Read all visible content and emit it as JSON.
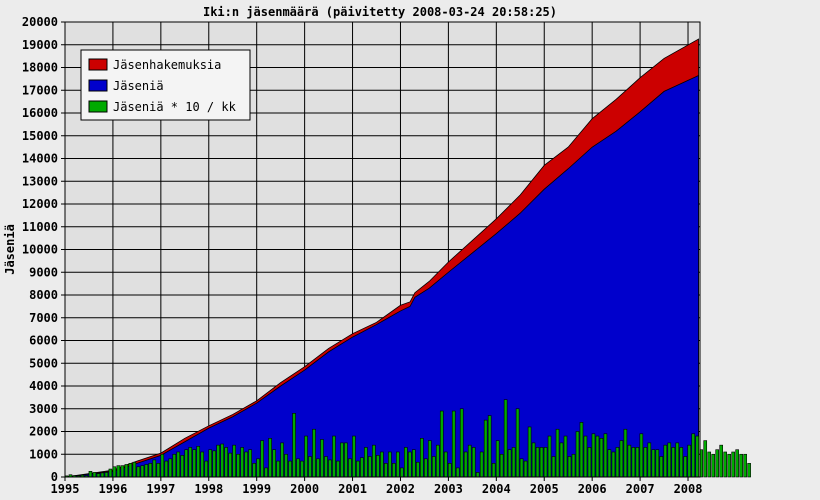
{
  "chart_data": {
    "type": "area",
    "title": "Iki:n jäsenmäärä (päivitetty 2008-03-24 20:58:25)",
    "xlabel": "",
    "ylabel": "Jäseniä",
    "ylim": [
      0,
      20000
    ],
    "xlim": [
      1995.0,
      2008.25
    ],
    "grid": true,
    "legend_position": "top-left",
    "y_ticks": [
      0,
      1000,
      2000,
      3000,
      4000,
      5000,
      6000,
      7000,
      8000,
      9000,
      10000,
      11000,
      12000,
      13000,
      14000,
      15000,
      16000,
      17000,
      18000,
      19000,
      20000
    ],
    "x_ticks": [
      1995,
      1996,
      1997,
      1998,
      1999,
      2000,
      2001,
      2002,
      2003,
      2004,
      2005,
      2006,
      2007,
      2008
    ],
    "series": [
      {
        "name": "Jäsenhakemuksia",
        "kind": "area",
        "color": "#cc0000",
        "points": [
          [
            1995.0,
            0
          ],
          [
            1996.0,
            300
          ],
          [
            1996.5,
            700
          ],
          [
            1997.0,
            1050
          ],
          [
            1997.5,
            1700
          ],
          [
            1998.0,
            2250
          ],
          [
            1998.5,
            2750
          ],
          [
            1999.0,
            3350
          ],
          [
            1999.5,
            4150
          ],
          [
            2000.0,
            4850
          ],
          [
            2000.5,
            5650
          ],
          [
            2001.0,
            6300
          ],
          [
            2001.5,
            6800
          ],
          [
            2002.0,
            7550
          ],
          [
            2002.2,
            7700
          ],
          [
            2002.3,
            8100
          ],
          [
            2002.6,
            8600
          ],
          [
            2003.0,
            9450
          ],
          [
            2003.5,
            10400
          ],
          [
            2004.0,
            11350
          ],
          [
            2004.5,
            12400
          ],
          [
            2005.0,
            13700
          ],
          [
            2005.5,
            14500
          ],
          [
            2006.0,
            15750
          ],
          [
            2006.5,
            16600
          ],
          [
            2007.0,
            17550
          ],
          [
            2007.5,
            18400
          ],
          [
            2008.22,
            19250
          ]
        ]
      },
      {
        "name": "Jäseniä",
        "kind": "area",
        "color": "#0000cc",
        "points": [
          [
            1995.0,
            0
          ],
          [
            1996.0,
            250
          ],
          [
            1996.5,
            600
          ],
          [
            1997.0,
            950
          ],
          [
            1997.5,
            1550
          ],
          [
            1998.0,
            2150
          ],
          [
            1998.5,
            2650
          ],
          [
            1999.0,
            3250
          ],
          [
            1999.5,
            4000
          ],
          [
            2000.0,
            4700
          ],
          [
            2000.5,
            5500
          ],
          [
            2001.0,
            6150
          ],
          [
            2001.5,
            6700
          ],
          [
            2002.0,
            7300
          ],
          [
            2002.2,
            7500
          ],
          [
            2002.3,
            7900
          ],
          [
            2002.6,
            8300
          ],
          [
            2003.0,
            9000
          ],
          [
            2003.5,
            9850
          ],
          [
            2004.0,
            10700
          ],
          [
            2004.5,
            11600
          ],
          [
            2005.0,
            12650
          ],
          [
            2005.5,
            13550
          ],
          [
            2006.0,
            14500
          ],
          [
            2006.5,
            15200
          ],
          [
            2007.0,
            16050
          ],
          [
            2007.5,
            16950
          ],
          [
            2008.22,
            17650
          ]
        ]
      },
      {
        "name": "Jäseniä * 10 / kk",
        "kind": "bar",
        "color": "#00aa00",
        "x_start": 1995.0,
        "step": 0.0833,
        "values": [
          50,
          100,
          60,
          50,
          80,
          60,
          250,
          200,
          150,
          180,
          200,
          350,
          450,
          500,
          500,
          550,
          600,
          650,
          450,
          500,
          550,
          600,
          750,
          600,
          1000,
          700,
          800,
          1000,
          1100,
          950,
          1200,
          1300,
          1200,
          1350,
          1100,
          700,
          1200,
          1150,
          1400,
          1450,
          1300,
          1050,
          1400,
          1000,
          1300,
          1100,
          1200,
          600,
          800,
          1600,
          400,
          1700,
          1200,
          700,
          1500,
          1000,
          700,
          2800,
          800,
          700,
          1800,
          900,
          2100,
          800,
          1650,
          900,
          750,
          1800,
          700,
          1500,
          1500,
          800,
          1800,
          700,
          850,
          1300,
          900,
          1400,
          950,
          1100,
          600,
          1100,
          600,
          1100,
          400,
          1300,
          1100,
          1200,
          650,
          1700,
          800,
          1600,
          900,
          1400,
          2900,
          1100,
          600,
          2900,
          400,
          3000,
          1100,
          1400,
          1300,
          200,
          1100,
          2500,
          2700,
          600,
          1600,
          1000,
          3400,
          1200,
          1300,
          3000,
          800,
          700,
          2200,
          1500,
          1300,
          1300,
          1300,
          1800,
          900,
          2100,
          1500,
          1800,
          900,
          1000,
          2000,
          2400,
          1800,
          1300,
          1900,
          1800,
          1700,
          1900,
          1200,
          1100,
          1300,
          1600,
          2100,
          1400,
          1300,
          1300,
          1900,
          1300,
          1500,
          1200,
          1200,
          900,
          1400,
          1500,
          1300,
          1500,
          1300,
          900,
          1400,
          1900,
          1800,
          1200,
          1600,
          1100,
          1000,
          1200,
          1400,
          1100,
          1000,
          1100,
          1200,
          1000,
          1000,
          600
        ]
      }
    ]
  }
}
